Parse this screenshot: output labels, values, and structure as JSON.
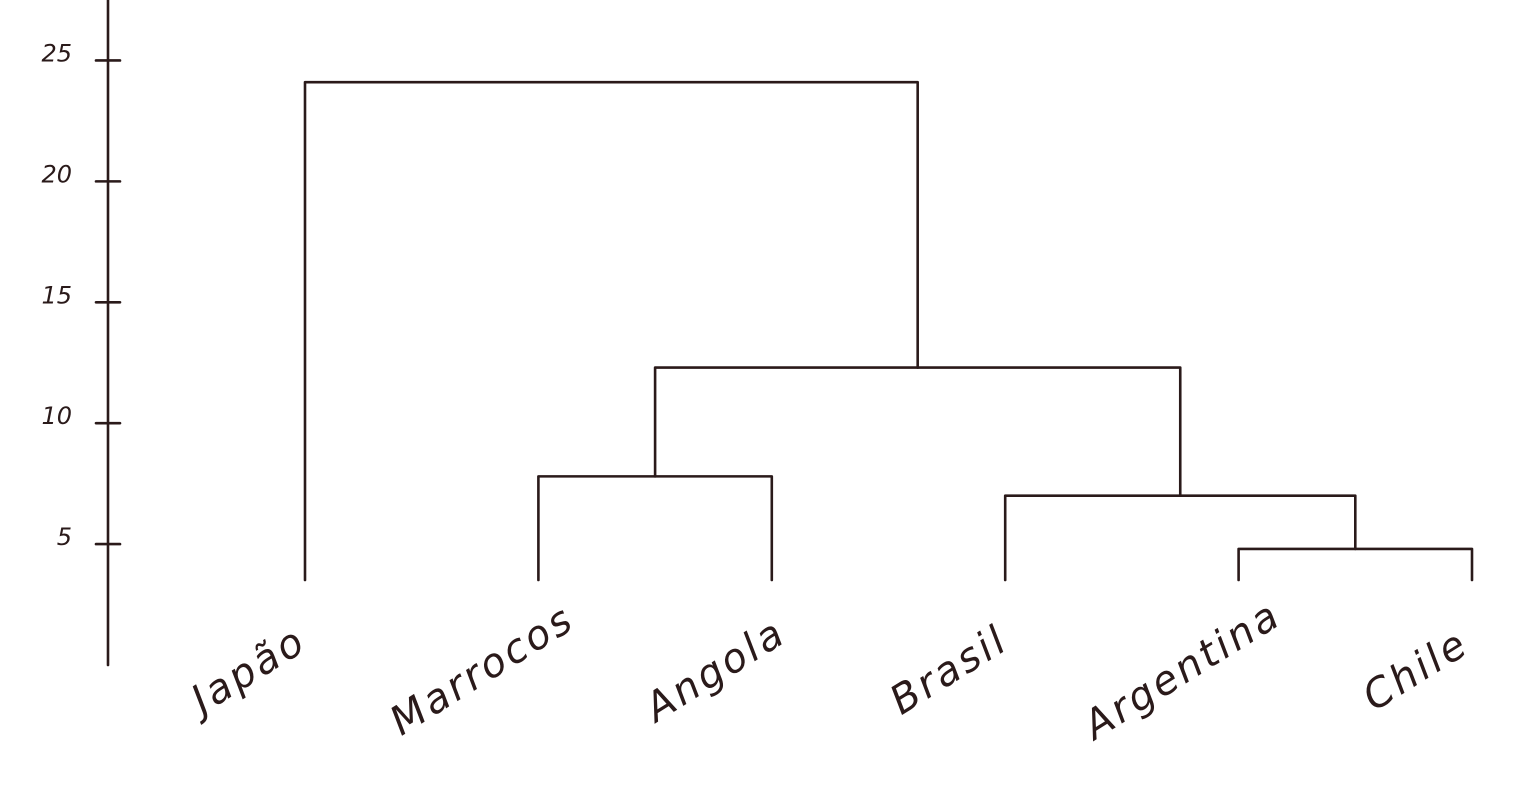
{
  "chart_data": {
    "type": "dendrogram",
    "leaves": [
      "Japão",
      "Marrocos",
      "Angola",
      "Brasil",
      "Argentina",
      "Chile"
    ],
    "merges": [
      {
        "children": [
          4,
          5
        ],
        "height": 4.8
      },
      {
        "children": [
          3,
          6
        ],
        "height": 7.0
      },
      {
        "children": [
          1,
          2
        ],
        "height": 7.8
      },
      {
        "children": [
          8,
          7
        ],
        "height": 12.3
      },
      {
        "children": [
          0,
          9
        ],
        "height": 24.1
      }
    ],
    "ylim": [
      0,
      27.5
    ],
    "yticks": [
      5,
      10,
      15,
      20,
      25
    ]
  }
}
